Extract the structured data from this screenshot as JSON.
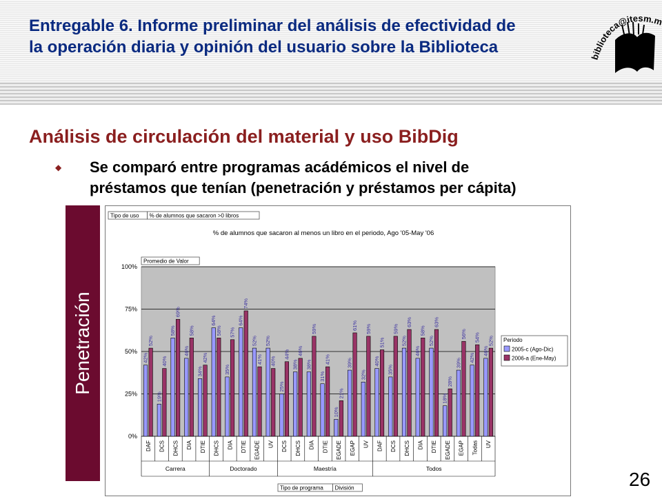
{
  "header": {
    "title_line1": "Entregable 6. Informe preliminar del análisis de efectividad de",
    "title_line2": "la operación diaria y opinión del usuario sobre la Biblioteca",
    "logo_text": "biblioteca@itesm.mx"
  },
  "section": {
    "title": "Análisis de circulación del material y uso BibDig",
    "bullet_line1": "Se comparó entre programas acádémicos el nivel de",
    "bullet_line2": "préstamos que tenían (penetración y préstamos per cápita)"
  },
  "side_label": "Penetración",
  "page_number": "26",
  "colors": {
    "series1": "#9999ff",
    "series2": "#993366",
    "side_band": "#6b0b2f",
    "title": "#0a2a80",
    "section": "#8a1f1f"
  },
  "chart_data": {
    "type": "bar",
    "pivot_fields_top": [
      "Tipo de uso",
      "% de alumnos que sacaron >0 libros"
    ],
    "title": "% de alumnos que sacaron al menos un libro en el periodo, Ago '05-May '06",
    "data_field": "Promedio de Valor",
    "legend_title": "Periodo",
    "legend_position": "right",
    "ylim": [
      0,
      1
    ],
    "yticks": [
      "0%",
      "25%",
      "50%",
      "75%",
      "100%"
    ],
    "grid": true,
    "bottom_fields": [
      "Tipo de programa",
      "División"
    ],
    "groups": [
      {
        "name": "Carrera",
        "count": 5
      },
      {
        "name": "Doctorado",
        "count": 5
      },
      {
        "name": "Maestría",
        "count": 7
      },
      {
        "name": "Todos",
        "count": 9
      }
    ],
    "categories": [
      "DAF",
      "DCS",
      "DHCS",
      "DIA",
      "DTIE",
      "DHCS",
      "DIA",
      "DTIE",
      "EGADE",
      "UV",
      "DCS",
      "DHCS",
      "DIA",
      "DTIE",
      "EGADE",
      "EGAP",
      "UV",
      "DAF",
      "DCS",
      "DHCS",
      "DIA",
      "DTIE",
      "EGADE",
      "EGAP",
      "Todas",
      "UV"
    ],
    "series": [
      {
        "name": "2005-c (Ago-Dic)",
        "values": [
          0.42,
          0.19,
          0.58,
          0.46,
          0.34,
          0.64,
          0.35,
          0.64,
          0.52,
          0.52,
          0.25,
          0.38,
          0.38,
          0.31,
          0.1,
          0.39,
          0.32,
          0.4,
          0.35,
          0.52,
          0.46,
          0.52,
          0.18,
          0.39,
          0.42,
          0.46
        ],
        "labels": [
          "42%",
          "19%",
          "58%",
          "46%",
          "34%",
          "64%",
          "35%",
          "64%",
          "52%",
          "52%",
          "25%",
          "38%",
          "38%",
          "31%",
          "10%",
          "39%",
          "32%",
          "40%",
          "35%",
          "52%",
          "46%",
          "52%",
          "18%",
          "39%",
          "42%",
          "46%"
        ]
      },
      {
        "name": "2006-a (Ene-May)",
        "values": [
          0.52,
          0.4,
          0.69,
          0.58,
          0.42,
          0.58,
          0.57,
          0.74,
          0.41,
          0.4,
          0.44,
          0.46,
          0.59,
          0.41,
          0.21,
          0.61,
          0.59,
          0.51,
          0.59,
          0.63,
          0.58,
          0.63,
          0.28,
          0.56,
          0.54,
          0.52
        ],
        "labels": [
          "52%",
          "40%",
          "69%",
          "58%",
          "42%",
          "58%",
          "57%",
          "74%",
          "41%",
          "40%",
          "44%",
          "46%",
          "59%",
          "41%",
          "21%",
          "61%",
          "59%",
          "51%",
          "59%",
          "63%",
          "58%",
          "63%",
          "28%",
          "56%",
          "54%",
          "52%"
        ]
      }
    ]
  }
}
